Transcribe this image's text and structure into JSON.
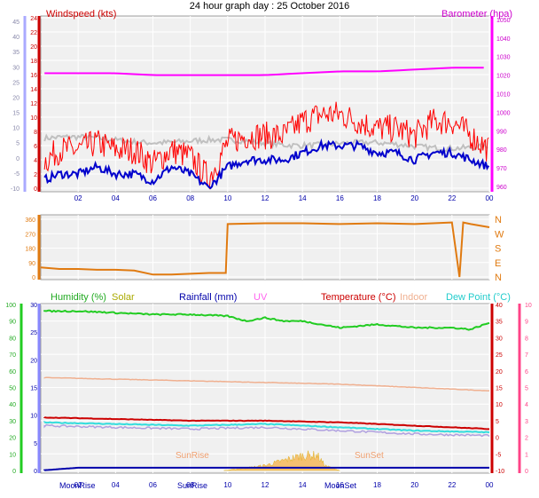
{
  "page": {
    "title": "24 hour graph day : 25 October 2016"
  },
  "colors": {
    "windspeed": "#ff0000",
    "gust": "#ff0000",
    "windavg": "#0000cc",
    "grey_trace": "#c0c0c0",
    "barometer": "#ff00ff",
    "direction": "#e07a10",
    "humidity": "#22cc22",
    "solar": "#cccc00",
    "rainfall": "#0000aa",
    "uv": "#ff80ff",
    "temperature": "#cc0000",
    "indoor": "#f0b090",
    "dewpoint": "#33dddd",
    "apparent": "#b0a0e0",
    "plot_bg": "#f0f0f0",
    "grid": "#ffffff",
    "axis_blue": "#8888ff",
    "axis_green": "#22cc22",
    "axis_pink": "#ff4488"
  },
  "panels": {
    "wind": {
      "left_title": "Windspeed (kts)",
      "right_title": "Barometer (hpa)",
      "left_ticks_outer": [
        "45",
        "40",
        "35",
        "30",
        "25",
        "20",
        "15",
        "10",
        "5",
        "0",
        "-5",
        "-10"
      ],
      "left_ticks_inner": [
        "24",
        "22",
        "20",
        "18",
        "16",
        "14",
        "12",
        "10",
        "8",
        "6",
        "4",
        "2",
        "0"
      ],
      "right_ticks": [
        "1050",
        "1040",
        "1030",
        "1020",
        "1010",
        "1000",
        "990",
        "980",
        "970",
        "960"
      ]
    },
    "direction": {
      "left_ticks": [
        "360",
        "270",
        "180",
        "90",
        "0"
      ],
      "right_labels": [
        "N",
        "W",
        "S",
        "E",
        "N"
      ]
    },
    "bottom": {
      "legend": {
        "humidity": "Humidity (%)",
        "solar": "Solar",
        "rainfall": "Rainfall (mm)",
        "uv": "UV",
        "temperature": "Temperature (°C)",
        "indoor": "Indoor",
        "dewpoint": "Dew Point (°C)"
      },
      "left_ticks_outer": [
        "100",
        "90",
        "80",
        "70",
        "60",
        "50",
        "40",
        "30",
        "20",
        "10",
        "0"
      ],
      "left_ticks_inner": [
        "30",
        "25",
        "20",
        "15",
        "10",
        "5",
        "0"
      ],
      "right_ticks_inner": [
        "40",
        "35",
        "30",
        "25",
        "20",
        "15",
        "10",
        "5",
        "0",
        "-5",
        "-10"
      ],
      "right_ticks_outer": [
        "10",
        "9",
        "8",
        "7",
        "6",
        "5",
        "4",
        "3",
        "2",
        "1",
        "0"
      ],
      "annotations": {
        "sunrise_mid": "SunRise",
        "sunset_mid": "SunSet",
        "moonrise": "MoonRise",
        "sunrise_axis": "SunRise",
        "moonset": "MoonSet"
      }
    }
  },
  "chart_data": [
    {
      "type": "line",
      "title": "24 hour graph day : 25 October 2016",
      "ylabel": "Windspeed (kts)",
      "y2label": "Barometer (hpa)",
      "x_ticks": [
        "02",
        "04",
        "06",
        "08",
        "10",
        "12",
        "14",
        "16",
        "18",
        "20",
        "22",
        "00"
      ],
      "x_range_hours": [
        0,
        24
      ],
      "ylim": [
        0,
        24
      ],
      "y2lim": [
        960,
        1050
      ],
      "series": [
        {
          "name": "Windspeed (kts)",
          "color": "#0000cc",
          "x": [
            0,
            1,
            2,
            3,
            4,
            5,
            6,
            7,
            8,
            9,
            10,
            11,
            12,
            13,
            14,
            15,
            16,
            17,
            18,
            19,
            20,
            21,
            22,
            23,
            24
          ],
          "values": [
            1,
            2,
            2,
            3,
            2,
            2,
            1,
            3,
            2,
            0,
            3,
            4,
            4,
            4,
            5,
            6,
            6,
            6,
            5,
            5,
            4,
            5,
            5,
            4,
            3
          ]
        },
        {
          "name": "Gust",
          "color": "#ff0000",
          "x": [
            0,
            1,
            2,
            3,
            4,
            5,
            6,
            7,
            8,
            9,
            10,
            11,
            12,
            13,
            14,
            15,
            16,
            17,
            18,
            19,
            20,
            21,
            22,
            23,
            24
          ],
          "values": [
            3,
            5,
            5,
            6,
            5,
            5,
            3,
            5,
            4,
            1,
            6,
            7,
            7,
            7,
            9,
            10,
            10,
            9,
            8,
            8,
            7,
            9,
            9,
            7,
            5
          ]
        },
        {
          "name": "Barometer (hpa)",
          "color": "#ff00ff",
          "axis": "right",
          "x": [
            0,
            2,
            4,
            6,
            8,
            10,
            12,
            14,
            16,
            18,
            20,
            22,
            24
          ],
          "values": [
            1021,
            1021,
            1021,
            1020,
            1020,
            1020,
            1020,
            1021,
            1022,
            1022,
            1023,
            1024,
            1024
          ]
        }
      ]
    },
    {
      "type": "line",
      "ylabel": "Wind direction",
      "ylim": [
        0,
        360
      ],
      "y_labels_right": [
        "N",
        "W",
        "S",
        "E",
        "N"
      ],
      "series": [
        {
          "name": "Direction",
          "color": "#e07a10",
          "x": [
            0,
            1,
            2,
            3,
            4,
            5,
            6,
            7,
            8,
            9,
            9.9,
            10,
            12,
            14,
            16,
            18,
            20,
            22,
            22.4,
            22.6,
            23,
            24
          ],
          "values": [
            60,
            50,
            50,
            45,
            45,
            40,
            15,
            15,
            20,
            25,
            25,
            330,
            335,
            335,
            330,
            335,
            330,
            340,
            0,
            340,
            330,
            310
          ]
        }
      ]
    },
    {
      "type": "line",
      "x_ticks": [
        "02",
        "04",
        "06",
        "08",
        "10",
        "12",
        "14",
        "16",
        "18",
        "20",
        "22",
        "00"
      ],
      "ylim": [
        0,
        30
      ],
      "series": [
        {
          "name": "Humidity (%)",
          "color": "#22cc22",
          "axis": "left-outer",
          "ylim": [
            0,
            100
          ],
          "x": [
            0,
            2,
            4,
            6,
            8,
            10,
            11,
            12,
            13,
            14,
            15,
            16,
            17,
            18,
            19,
            20,
            21,
            22,
            23,
            24
          ],
          "values": [
            96,
            96,
            95,
            94,
            94,
            93,
            90,
            92,
            90,
            90,
            88,
            86,
            87,
            88,
            87,
            86,
            86,
            86,
            85,
            89
          ]
        },
        {
          "name": "Temperature (°C)",
          "color": "#cc0000",
          "axis": "right-inner",
          "ylim": [
            -10,
            40
          ],
          "x": [
            0,
            4,
            8,
            12,
            16,
            20,
            24
          ],
          "values": [
            6,
            5.5,
            5,
            5,
            4.5,
            3.5,
            2.5
          ]
        },
        {
          "name": "Indoor",
          "color": "#f0b090",
          "axis": "right-inner",
          "ylim": [
            -10,
            40
          ],
          "x": [
            0,
            4,
            8,
            12,
            16,
            20,
            24
          ],
          "values": [
            18,
            17.5,
            17,
            16.5,
            16,
            15,
            14
          ]
        },
        {
          "name": "Dew Point (°C)",
          "color": "#33dddd",
          "axis": "right-inner",
          "ylim": [
            -10,
            40
          ],
          "x": [
            0,
            4,
            8,
            12,
            16,
            20,
            24
          ],
          "values": [
            4.5,
            4,
            3.5,
            4,
            3,
            2,
            1.5
          ]
        },
        {
          "name": "Apparent",
          "color": "#b0a0e0",
          "axis": "right-inner",
          "ylim": [
            -10,
            40
          ],
          "x": [
            0,
            4,
            8,
            12,
            16,
            20,
            24
          ],
          "values": [
            3.5,
            3,
            2.5,
            3,
            2,
            1,
            0.5
          ]
        },
        {
          "name": "Rainfall (mm)",
          "color": "#0000aa",
          "axis": "left-inner",
          "ylim": [
            0,
            30
          ],
          "x": [
            0,
            2,
            24
          ],
          "values": [
            0,
            0.5,
            0.5
          ]
        },
        {
          "name": "Solar",
          "color": "#cccc00",
          "axis": "left-inner",
          "ylim": [
            0,
            30
          ],
          "x": [
            9.8,
            11,
            12,
            13,
            14,
            14.8,
            15.2,
            16
          ],
          "values": [
            0,
            0.5,
            1,
            2,
            3,
            3,
            1,
            0
          ]
        }
      ]
    }
  ]
}
